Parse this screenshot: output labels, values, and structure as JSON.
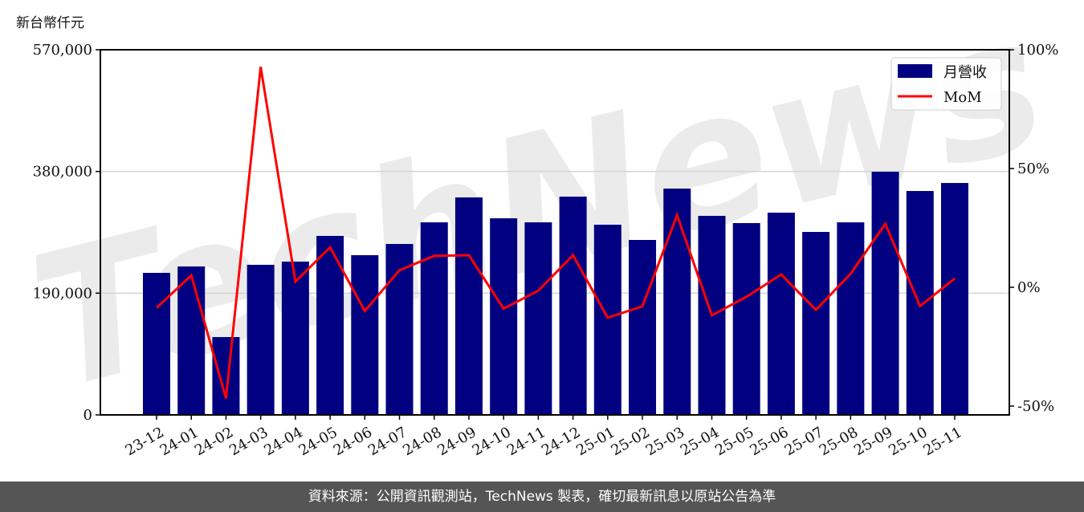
{
  "chart_data": {
    "type": "bar",
    "ylabel": "新台幣仟元",
    "categories": [
      "23-12",
      "24-01",
      "24-02",
      "24-03",
      "24-04",
      "24-05",
      "24-06",
      "24-07",
      "24-08",
      "24-09",
      "24-10",
      "24-11",
      "24-12",
      "25-01",
      "25-02",
      "25-03",
      "25-04",
      "25-05",
      "25-06",
      "25-07",
      "25-08",
      "25-09",
      "25-10",
      "25-11"
    ],
    "series": [
      {
        "name": "月營收",
        "type": "bar",
        "axis": "left",
        "color": "#000080",
        "values": [
          221700,
          231700,
          121500,
          234300,
          239300,
          279400,
          249300,
          266800,
          300600,
          339500,
          306900,
          300600,
          340700,
          296900,
          273100,
          353300,
          310700,
          299400,
          315700,
          285600,
          300600,
          379600,
          349500,
          362000
        ]
      },
      {
        "name": "MoM",
        "type": "line",
        "axis": "right",
        "color": "#ff0000",
        "values": [
          -8.6,
          5.0,
          -46.8,
          92.8,
          2.4,
          16.8,
          -10.0,
          7.2,
          13.2,
          13.5,
          -9.0,
          -1.4,
          13.5,
          -12.8,
          -8.0,
          30.4,
          -11.8,
          -4.0,
          5.4,
          -9.5,
          5.7,
          26.7,
          -7.9,
          3.7
        ]
      }
    ],
    "left_axis": {
      "ylim": [
        0,
        570000
      ],
      "ticks": [
        0,
        190000,
        380000,
        570000
      ],
      "tick_labels": [
        "0",
        "190,000",
        "380,000",
        "570,000"
      ]
    },
    "right_axis": {
      "ylim": [
        -50,
        100
      ],
      "ticks": [
        -50,
        0,
        50,
        100
      ],
      "tick_labels": [
        "-50%",
        "0%",
        "50%",
        "100%"
      ]
    },
    "grid": "horizontal",
    "legend": "top-right"
  },
  "watermark": "TechNews",
  "footer": "資料來源：公開資訊觀測站，TechNews 製表，確切最新訊息以原站公告為準"
}
